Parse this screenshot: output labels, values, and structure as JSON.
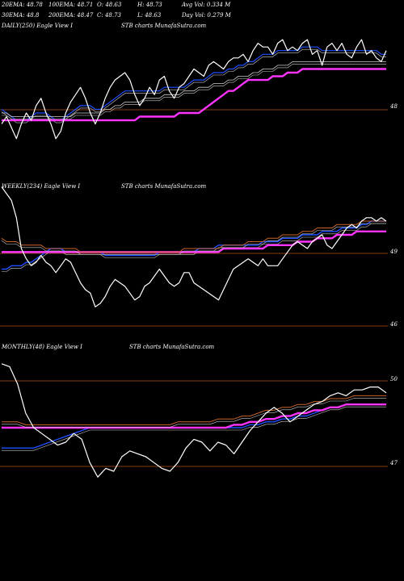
{
  "header": {
    "row1": [
      "20EMA: 48.78",
      "100EMA: 48.71",
      "O: 48.63",
      "H: 48.73",
      "Avg Vol: 0.334  M"
    ],
    "row2": [
      "30EMA: 48.8",
      "200EMA: 48.47",
      "C: 48.73",
      "L: 48.63",
      "Day Vol: 0.279 M"
    ]
  },
  "panels": [
    {
      "title": "DAILY(250) Eagle   View  I",
      "watermark": "STB charts MunafaSutra.com",
      "right_label": "48"
    },
    {
      "title": "WEEKLY(234) Eagle   View  I",
      "watermark": "STB charts MunafaSutra.com",
      "right_labels": [
        "49",
        "46"
      ]
    },
    {
      "title": "MONTHLY(48) Eagle   View  I",
      "watermark": "STB charts MunafaSutra.com",
      "right_labels": [
        "50",
        "47"
      ]
    }
  ],
  "colors": {
    "price": "#ffffff",
    "ema_blue": "#1f4fff",
    "ema_magenta": "#ff33ff",
    "ema_orange": "#c8642a",
    "ema_gray": "#cccccc",
    "grid_orange": "#b4501e"
  },
  "chart_data": [
    {
      "type": "line",
      "name": "daily",
      "ylim": [
        46.8,
        50.1
      ],
      "ticks": [
        48
      ],
      "series": [
        {
          "name": "price",
          "values": [
            47.6,
            47.8,
            47.5,
            47.2,
            47.6,
            47.9,
            47.7,
            48.1,
            48.3,
            47.9,
            47.6,
            47.2,
            47.4,
            47.9,
            48.2,
            48.4,
            48.6,
            48.3,
            47.9,
            47.6,
            47.9,
            48.3,
            48.6,
            48.8,
            48.9,
            49.0,
            48.8,
            48.4,
            48.1,
            48.3,
            48.6,
            48.4,
            48.8,
            48.9,
            48.5,
            48.3,
            48.6,
            48.7,
            48.9,
            49.1,
            49.0,
            48.9,
            49.2,
            49.3,
            49.2,
            49.1,
            49.3,
            49.4,
            49.4,
            49.5,
            49.3,
            49.6,
            49.8,
            49.7,
            49.7,
            49.5,
            49.8,
            49.9,
            49.6,
            49.7,
            49.6,
            49.8,
            49.9,
            49.5,
            49.6,
            49.2,
            49.7,
            49.8,
            49.6,
            49.8,
            49.5,
            49.4,
            49.7,
            49.9,
            49.5,
            49.6,
            49.4,
            49.3,
            49.6
          ]
        },
        {
          "name": "ema_fast",
          "values": [
            48.0,
            47.9,
            47.8,
            47.7,
            47.7,
            47.7,
            47.8,
            47.9,
            47.9,
            47.9,
            47.8,
            47.7,
            47.7,
            47.8,
            47.9,
            48.0,
            48.1,
            48.1,
            48.1,
            48.0,
            48.0,
            48.1,
            48.2,
            48.3,
            48.4,
            48.5,
            48.5,
            48.5,
            48.5,
            48.5,
            48.5,
            48.5,
            48.5,
            48.6,
            48.6,
            48.6,
            48.6,
            48.6,
            48.7,
            48.8,
            48.8,
            48.8,
            48.9,
            49.0,
            49.0,
            49.0,
            49.1,
            49.1,
            49.2,
            49.2,
            49.3,
            49.3,
            49.4,
            49.5,
            49.5,
            49.5,
            49.6,
            49.6,
            49.6,
            49.6,
            49.6,
            49.7,
            49.7,
            49.7,
            49.7,
            49.6,
            49.6,
            49.6,
            49.6,
            49.6,
            49.6,
            49.6,
            49.6,
            49.6,
            49.6,
            49.6,
            49.6,
            49.5,
            49.5
          ]
        },
        {
          "name": "ema_slow",
          "values": [
            47.9,
            47.9,
            47.8,
            47.8,
            47.8,
            47.8,
            47.8,
            47.8,
            47.8,
            47.8,
            47.8,
            47.8,
            47.8,
            47.8,
            47.8,
            47.9,
            47.9,
            47.9,
            47.9,
            47.9,
            47.9,
            48.0,
            48.0,
            48.1,
            48.1,
            48.2,
            48.2,
            48.2,
            48.2,
            48.3,
            48.3,
            48.3,
            48.3,
            48.4,
            48.4,
            48.4,
            48.4,
            48.5,
            48.5,
            48.5,
            48.6,
            48.6,
            48.6,
            48.7,
            48.7,
            48.7,
            48.8,
            48.8,
            48.9,
            48.9,
            48.9,
            49.0,
            49.0,
            49.1,
            49.1,
            49.1,
            49.2,
            49.2,
            49.2,
            49.3,
            49.3,
            49.3,
            49.3,
            49.3,
            49.3,
            49.3,
            49.3,
            49.3,
            49.3,
            49.3,
            49.3,
            49.3,
            49.3,
            49.3,
            49.3,
            49.3,
            49.3,
            49.3,
            49.3
          ]
        },
        {
          "name": "ema_long",
          "values": [
            47.7,
            47.7,
            47.7,
            47.7,
            47.7,
            47.7,
            47.7,
            47.7,
            47.7,
            47.7,
            47.7,
            47.7,
            47.7,
            47.7,
            47.7,
            47.7,
            47.7,
            47.7,
            47.7,
            47.7,
            47.7,
            47.7,
            47.7,
            47.7,
            47.7,
            47.7,
            47.7,
            47.7,
            47.8,
            47.8,
            47.8,
            47.8,
            47.8,
            47.8,
            47.8,
            47.8,
            47.9,
            47.9,
            47.9,
            47.9,
            47.9,
            48.0,
            48.1,
            48.2,
            48.3,
            48.4,
            48.5,
            48.5,
            48.6,
            48.7,
            48.8,
            48.8,
            48.8,
            48.8,
            48.8,
            48.9,
            48.9,
            48.9,
            49.0,
            49.0,
            49.0,
            49.1,
            49.1,
            49.1,
            49.1,
            49.1,
            49.1,
            49.1,
            49.1,
            49.1,
            49.1,
            49.1,
            49.1,
            49.1,
            49.1,
            49.1,
            49.1,
            49.1,
            49.1
          ]
        }
      ]
    },
    {
      "type": "line",
      "name": "weekly",
      "ylim": [
        45.6,
        49.6
      ],
      "ticks": [
        49,
        46
      ],
      "series": [
        {
          "name": "price",
          "values": [
            49.8,
            49.6,
            49.4,
            48.9,
            48.0,
            47.7,
            47.5,
            47.6,
            47.8,
            47.6,
            47.5,
            47.3,
            47.5,
            47.7,
            47.6,
            47.3,
            47.0,
            46.8,
            46.7,
            46.3,
            46.4,
            46.6,
            46.9,
            47.1,
            47.0,
            46.9,
            46.7,
            46.5,
            46.6,
            46.9,
            47.0,
            47.2,
            47.4,
            47.2,
            47.0,
            46.9,
            47.0,
            47.3,
            47.3,
            47.0,
            46.9,
            46.8,
            46.7,
            46.6,
            46.5,
            46.8,
            47.1,
            47.4,
            47.5,
            47.6,
            47.7,
            47.6,
            47.5,
            47.7,
            47.5,
            47.5,
            47.5,
            47.7,
            47.9,
            48.1,
            48.2,
            48.1,
            48.0,
            48.2,
            48.3,
            48.4,
            48.1,
            48.0,
            48.2,
            48.4,
            48.6,
            48.7,
            48.6,
            48.8,
            48.9,
            48.9,
            48.8,
            48.9,
            48.8
          ]
        },
        {
          "name": "ema_blue",
          "values": [
            47.4,
            47.4,
            47.5,
            47.5,
            47.5,
            47.6,
            47.6,
            47.7,
            47.8,
            47.9,
            48.0,
            48.0,
            48.0,
            47.9,
            47.9,
            47.9,
            47.9,
            47.9,
            47.9,
            47.9,
            47.9,
            47.8,
            47.8,
            47.8,
            47.8,
            47.8,
            47.8,
            47.8,
            47.8,
            47.8,
            47.8,
            47.8,
            47.9,
            47.9,
            47.9,
            47.9,
            47.9,
            47.9,
            47.9,
            47.9,
            48.0,
            48.0,
            48.0,
            48.0,
            48.1,
            48.1,
            48.1,
            48.1,
            48.1,
            48.1,
            48.1,
            48.1,
            48.1,
            48.2,
            48.2,
            48.2,
            48.2,
            48.3,
            48.3,
            48.3,
            48.3,
            48.4,
            48.4,
            48.4,
            48.4,
            48.5,
            48.5,
            48.5,
            48.5,
            48.6,
            48.6,
            48.6,
            48.6,
            48.7,
            48.7,
            48.8,
            48.8,
            48.8,
            48.8
          ]
        },
        {
          "name": "ema_mag",
          "values": [
            47.9,
            47.9,
            47.9,
            47.9,
            47.9,
            47.9,
            47.9,
            47.9,
            47.9,
            47.9,
            47.9,
            47.9,
            47.9,
            47.9,
            47.9,
            47.9,
            47.9,
            47.9,
            47.9,
            47.9,
            47.9,
            47.9,
            47.9,
            47.9,
            47.9,
            47.9,
            47.9,
            47.9,
            47.9,
            47.9,
            47.9,
            47.9,
            47.9,
            47.9,
            47.9,
            47.9,
            47.9,
            47.9,
            47.9,
            47.9,
            47.9,
            47.9,
            47.9,
            47.9,
            47.9,
            48.0,
            48.0,
            48.0,
            48.0,
            48.0,
            48.0,
            48.0,
            48.0,
            48.0,
            48.1,
            48.1,
            48.1,
            48.1,
            48.1,
            48.1,
            48.2,
            48.2,
            48.2,
            48.2,
            48.3,
            48.3,
            48.3,
            48.3,
            48.4,
            48.4,
            48.4,
            48.4,
            48.5,
            48.5,
            48.5,
            48.5,
            48.5,
            48.5,
            48.5
          ]
        },
        {
          "name": "ema_orange",
          "values": [
            48.3,
            48.2,
            48.2,
            48.2,
            48.1,
            48.1,
            48.1,
            48.1,
            48.1,
            48.0,
            48.0,
            48.0,
            48.0,
            48.0,
            48.0,
            48.0,
            47.9,
            47.9,
            47.9,
            47.9,
            47.9,
            47.9,
            47.9,
            47.9,
            47.9,
            47.9,
            47.9,
            47.9,
            47.9,
            47.9,
            47.9,
            47.9,
            47.9,
            47.9,
            47.9,
            47.9,
            47.9,
            48.0,
            48.0,
            48.0,
            48.0,
            48.0,
            48.0,
            48.0,
            48.0,
            48.1,
            48.1,
            48.1,
            48.1,
            48.1,
            48.2,
            48.2,
            48.2,
            48.2,
            48.3,
            48.3,
            48.3,
            48.4,
            48.4,
            48.4,
            48.4,
            48.5,
            48.5,
            48.5,
            48.6,
            48.6,
            48.6,
            48.6,
            48.7,
            48.7,
            48.7,
            48.7,
            48.7,
            48.8,
            48.8,
            48.8,
            48.8,
            48.8,
            48.8
          ]
        }
      ]
    },
    {
      "type": "line",
      "name": "monthly",
      "ylim": [
        45.5,
        50.5
      ],
      "ticks": [
        50,
        47
      ],
      "series": [
        {
          "name": "price",
          "values": [
            50.2,
            50.1,
            49.5,
            48.5,
            48.0,
            47.8,
            47.6,
            47.4,
            47.5,
            47.8,
            47.6,
            46.8,
            46.3,
            46.6,
            46.5,
            47.0,
            47.2,
            47.1,
            47.0,
            46.8,
            46.6,
            46.5,
            46.8,
            47.3,
            47.6,
            47.5,
            47.2,
            47.5,
            47.4,
            47.1,
            47.5,
            47.9,
            48.2,
            48.5,
            48.7,
            48.5,
            48.2,
            48.4,
            48.6,
            48.8,
            48.9,
            49.1,
            49.2,
            49.1,
            49.3,
            49.3,
            49.4,
            49.4,
            49.2
          ]
        },
        {
          "name": "ema_blue",
          "values": [
            47.3,
            47.3,
            47.3,
            47.3,
            47.3,
            47.4,
            47.5,
            47.6,
            47.7,
            47.8,
            47.9,
            48.0,
            48.0,
            48.0,
            48.0,
            48.0,
            48.0,
            48.0,
            48.0,
            48.0,
            48.0,
            48.0,
            48.0,
            48.0,
            48.0,
            48.0,
            48.0,
            48.0,
            48.0,
            48.0,
            48.0,
            48.1,
            48.1,
            48.2,
            48.2,
            48.3,
            48.3,
            48.4,
            48.4,
            48.5,
            48.6,
            48.7,
            48.7,
            48.8,
            48.8,
            48.8,
            48.8,
            48.8,
            48.8
          ]
        },
        {
          "name": "ema_mag",
          "values": [
            48.0,
            48.0,
            48.0,
            48.0,
            48.0,
            48.0,
            48.0,
            48.0,
            48.0,
            48.0,
            48.0,
            48.0,
            48.0,
            48.0,
            48.0,
            48.0,
            48.0,
            48.0,
            48.0,
            48.0,
            48.0,
            48.0,
            48.0,
            48.0,
            48.0,
            48.0,
            48.0,
            48.0,
            48.0,
            48.1,
            48.1,
            48.2,
            48.2,
            48.3,
            48.3,
            48.4,
            48.4,
            48.5,
            48.5,
            48.6,
            48.6,
            48.7,
            48.7,
            48.8,
            48.8,
            48.8,
            48.8,
            48.8,
            48.8
          ]
        },
        {
          "name": "ema_orange",
          "values": [
            48.2,
            48.2,
            48.2,
            48.1,
            48.1,
            48.1,
            48.1,
            48.1,
            48.1,
            48.1,
            48.1,
            48.1,
            48.1,
            48.1,
            48.1,
            48.1,
            48.1,
            48.1,
            48.1,
            48.1,
            48.1,
            48.1,
            48.2,
            48.2,
            48.2,
            48.2,
            48.2,
            48.3,
            48.3,
            48.3,
            48.4,
            48.4,
            48.5,
            48.6,
            48.6,
            48.7,
            48.7,
            48.8,
            48.8,
            48.9,
            48.9,
            49.0,
            49.0,
            49.0,
            49.1,
            49.1,
            49.1,
            49.1,
            49.1
          ]
        }
      ]
    }
  ]
}
